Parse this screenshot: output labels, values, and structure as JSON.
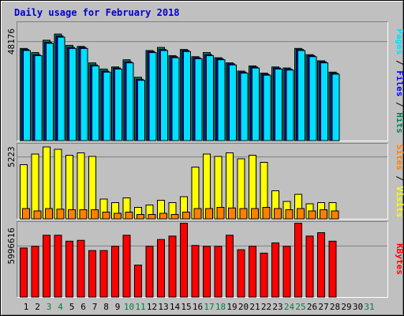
{
  "colors": {
    "background": "#c0c0c0",
    "title": "#0000cc",
    "hits": "#00805c",
    "files": "#0000ff",
    "pages": "#00e0ff",
    "visits": "#ffff00",
    "sites": "#ff8000",
    "kbytes": "#ff0000",
    "weekend_day": "#007f40",
    "weekday_day": "#000000",
    "gridline": "#808080"
  },
  "chart_data": {
    "type": "bar",
    "title": "Daily usage for February 2018",
    "days": [
      "1",
      "2",
      "3",
      "4",
      "5",
      "6",
      "7",
      "8",
      "9",
      "10",
      "11",
      "12",
      "13",
      "14",
      "15",
      "16",
      "17",
      "18",
      "19",
      "20",
      "21",
      "22",
      "23",
      "24",
      "25",
      "26",
      "27",
      "28",
      "29",
      "30",
      "31"
    ],
    "weekend_days": [
      "3",
      "4",
      "10",
      "11",
      "17",
      "18",
      "24",
      "25",
      "31"
    ],
    "panels": [
      {
        "id": "hits",
        "tick_label": "48176",
        "tick_value": 48176,
        "ymax": 58000,
        "legend": [
          {
            "key": "pages",
            "label": "Pages"
          },
          {
            "sep": " / "
          },
          {
            "key": "files",
            "label": "Files"
          },
          {
            "sep": " / "
          },
          {
            "key": "hits",
            "label": "Hits"
          }
        ],
        "series": [
          {
            "name": "Hits",
            "key": "hits",
            "values": [
              45000,
              43000,
              49000,
              52000,
              46500,
              46000,
              38000,
              35000,
              36000,
              39500,
              31000,
              44000,
              45500,
              41500,
              44500,
              41000,
              43000,
              40500,
              38000,
              34000,
              36500,
              33000,
              36000,
              35500,
              45000,
              42000,
              39000,
              33500,
              0,
              0,
              0
            ]
          },
          {
            "name": "Files",
            "key": "files",
            "values": [
              44500,
              42000,
              48000,
              51000,
              45500,
              45500,
              37000,
              34000,
              35500,
              38500,
              30000,
              43500,
              44500,
              41000,
              44000,
              40500,
              42000,
              40000,
              37500,
              33500,
              36000,
              32500,
              35500,
              35000,
              44500,
              41500,
              38500,
              33000,
              0,
              0,
              0
            ]
          },
          {
            "name": "Pages",
            "key": "pages",
            "values": [
              44000,
              41500,
              47500,
              50500,
              45000,
              45000,
              36500,
              33500,
              35000,
              38000,
              29500,
              43000,
              44000,
              40500,
              43500,
              40000,
              41500,
              39500,
              37000,
              33000,
              35500,
              32000,
              35000,
              34500,
              44000,
              41000,
              38000,
              32500,
              0,
              0,
              0
            ]
          }
        ]
      },
      {
        "id": "visits",
        "tick_label": "5223",
        "tick_value": 5223,
        "ymax": 6400,
        "legend": [
          {
            "key": "sites",
            "label": "Sites"
          },
          {
            "sep": " / "
          },
          {
            "key": "visits",
            "label": "Visits"
          }
        ],
        "series": [
          {
            "name": "Visits",
            "key": "visits",
            "values": [
              4600,
              5500,
              6100,
              5900,
              5400,
              5600,
              5300,
              1700,
              1400,
              1800,
              1000,
              1200,
              1600,
              1400,
              1900,
              4400,
              5500,
              5300,
              5600,
              5100,
              5400,
              4800,
              2400,
              1500,
              2100,
              1300,
              1400,
              1400,
              0,
              0,
              0
            ]
          },
          {
            "name": "Sites",
            "key": "sites",
            "values": [
              900,
              700,
              900,
              850,
              800,
              800,
              800,
              600,
              500,
              600,
              400,
              400,
              500,
              400,
              600,
              900,
              900,
              1000,
              950,
              900,
              900,
              1000,
              900,
              800,
              900,
              700,
              800,
              700,
              0,
              0,
              0
            ]
          }
        ]
      },
      {
        "id": "kbytes",
        "tick_label": "5996616",
        "tick_value": 5996616,
        "ymax": 8900000,
        "legend": [
          {
            "key": "kbytes",
            "label": "KBytes"
          }
        ],
        "series": [
          {
            "name": "KBytes",
            "key": "kbytes",
            "values": [
              5800000,
              6000000,
              7300000,
              7300000,
              6600000,
              6700000,
              5500000,
              5500000,
              6000000,
              7300000,
              3800000,
              6000000,
              6800000,
              7200000,
              8700000,
              6100000,
              6000000,
              6000000,
              7300000,
              5600000,
              6000000,
              5200000,
              6400000,
              6000000,
              8700000,
              7200000,
              7600000,
              6600000,
              0,
              0,
              0
            ]
          }
        ]
      }
    ]
  }
}
